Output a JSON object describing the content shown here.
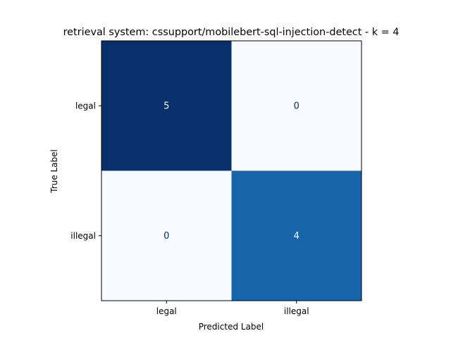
{
  "chart_data": {
    "type": "heatmap",
    "title": "retrieval system: cssupport/mobilebert-sql-injection-detect - k = 4",
    "xlabel": "Predicted Label",
    "ylabel": "True Label",
    "x_categories": [
      "legal",
      "illegal"
    ],
    "y_categories": [
      "legal",
      "illegal"
    ],
    "matrix": [
      [
        5,
        0
      ],
      [
        0,
        4
      ]
    ],
    "colormap": "Blues",
    "vmin": 0,
    "vmax": 5,
    "colors": {
      "max": "#08306b",
      "min": "#f7fbff",
      "mid_high": "#1764ab",
      "text_dark": "#08306b",
      "text_light": "#f7fbff"
    },
    "grid": false,
    "colorbar": false
  }
}
